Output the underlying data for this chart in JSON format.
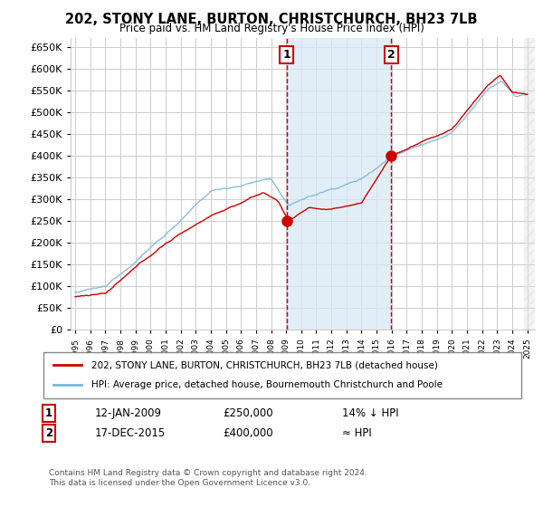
{
  "title": "202, STONY LANE, BURTON, CHRISTCHURCH, BH23 7LB",
  "subtitle": "Price paid vs. HM Land Registry's House Price Index (HPI)",
  "ylim": [
    0,
    670000
  ],
  "yticks": [
    0,
    50000,
    100000,
    150000,
    200000,
    250000,
    300000,
    350000,
    400000,
    450000,
    500000,
    550000,
    600000,
    650000
  ],
  "xlim_start": 1994.7,
  "xlim_end": 2025.5,
  "transaction1_date": 2009.04,
  "transaction1_price": 250000,
  "transaction1_label": "1",
  "transaction2_date": 2015.96,
  "transaction2_price": 400000,
  "transaction2_label": "2",
  "shaded_region_start": 2009.04,
  "shaded_region_end": 2015.96,
  "hatch_region_start": 2024.8,
  "legend_line1": "202, STONY LANE, BURTON, CHRISTCHURCH, BH23 7LB (detached house)",
  "legend_line2": "HPI: Average price, detached house, Bournemouth Christchurch and Poole",
  "annotation1_label": "1",
  "annotation1_date": "12-JAN-2009",
  "annotation1_price": "£250,000",
  "annotation1_rel": "14% ↓ HPI",
  "annotation2_label": "2",
  "annotation2_date": "17-DEC-2015",
  "annotation2_price": "£400,000",
  "annotation2_rel": "≈ HPI",
  "footer": "Contains HM Land Registry data © Crown copyright and database right 2024.\nThis data is licensed under the Open Government Licence v3.0.",
  "hpi_color": "#7ab8d9",
  "price_color": "#cc0000",
  "grid_color": "#cccccc",
  "shaded_color": "#d6e8f5",
  "background_color": "#ffffff"
}
